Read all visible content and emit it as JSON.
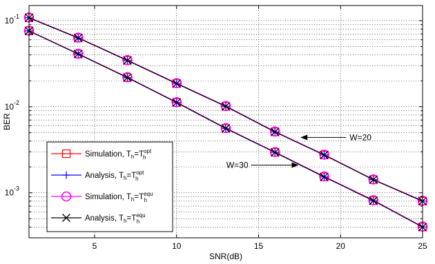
{
  "chart_data": {
    "type": "line",
    "title": "",
    "xlabel": "SNR(dB)",
    "ylabel": "BER",
    "xlim": [
      1,
      25
    ],
    "ylim": [
      0.0003,
      0.15
    ],
    "yscale": "log",
    "grid": true,
    "legend_position": "bottom-left",
    "x": [
      1,
      4,
      7,
      10,
      13,
      16,
      19,
      22,
      25
    ],
    "x_ticks": [
      5,
      10,
      15,
      20,
      25
    ],
    "x_tick_labels": [
      "5",
      "10",
      "15",
      "20",
      "25"
    ],
    "y_ticks": [
      0.1,
      0.01,
      0.001
    ],
    "y_tick_labels": [
      {
        "base": "10",
        "exp": "-1"
      },
      {
        "base": "10",
        "exp": "-2"
      },
      {
        "base": "10",
        "exp": "-3"
      }
    ],
    "series": [
      {
        "label": {
          "text": "Simulation, T",
          "sub": "h",
          "mid": "=T",
          "sup": "opt",
          "sub2": "h"
        },
        "color": "#ff0000",
        "marker": "square",
        "group": "W20",
        "values": [
          0.108,
          0.063,
          0.0345,
          0.0186,
          0.0101,
          0.0051,
          0.00275,
          0.00142,
          0.0008
        ]
      },
      {
        "label": {
          "text": "Analysis, T",
          "sub": "h",
          "mid": "=T",
          "sup": "opt",
          "sub2": "h"
        },
        "color": "#0000ff",
        "marker": "plus",
        "group": "W20",
        "values": [
          0.108,
          0.063,
          0.0345,
          0.0186,
          0.0101,
          0.0051,
          0.00275,
          0.00142,
          0.0008
        ]
      },
      {
        "label": {
          "text": "Simulation, T",
          "sub": "h",
          "mid": "=T",
          "sup": "equ",
          "sub2": "h"
        },
        "color": "#ff00ff",
        "marker": "circle",
        "group": "W20",
        "values": [
          0.109,
          0.0635,
          0.0348,
          0.0188,
          0.0102,
          0.00515,
          0.00278,
          0.00143,
          0.00081
        ]
      },
      {
        "label": {
          "text": "Analysis, T",
          "sub": "h",
          "mid": "=T",
          "sup": "equ",
          "sub2": "h"
        },
        "color": "#000000",
        "marker": "x",
        "group": "W20",
        "values": [
          0.108,
          0.063,
          0.0345,
          0.0186,
          0.0101,
          0.0051,
          0.00275,
          0.00142,
          0.0008
        ]
      },
      {
        "color": "#ff0000",
        "marker": "square",
        "group": "W30",
        "values": [
          0.076,
          0.041,
          0.0218,
          0.0112,
          0.0056,
          0.00295,
          0.00153,
          0.00081,
          0.0004
        ]
      },
      {
        "color": "#0000ff",
        "marker": "plus",
        "group": "W30",
        "values": [
          0.076,
          0.041,
          0.0218,
          0.0112,
          0.0056,
          0.00295,
          0.00153,
          0.00081,
          0.0004
        ]
      },
      {
        "color": "#ff00ff",
        "marker": "circle",
        "group": "W30",
        "values": [
          0.0765,
          0.0413,
          0.022,
          0.0113,
          0.00565,
          0.00298,
          0.00155,
          0.00082,
          0.000405
        ]
      },
      {
        "color": "#000000",
        "marker": "x",
        "group": "W30",
        "values": [
          0.076,
          0.041,
          0.0218,
          0.0112,
          0.0056,
          0.00295,
          0.00153,
          0.00081,
          0.0004
        ]
      }
    ],
    "annotations": [
      {
        "text": "W=20",
        "arrow_to": {
          "x": 17.6,
          "y": 0.0044
        }
      },
      {
        "text": "W=30",
        "arrow_to": {
          "x": 17.4,
          "y": 0.0021
        }
      }
    ]
  }
}
